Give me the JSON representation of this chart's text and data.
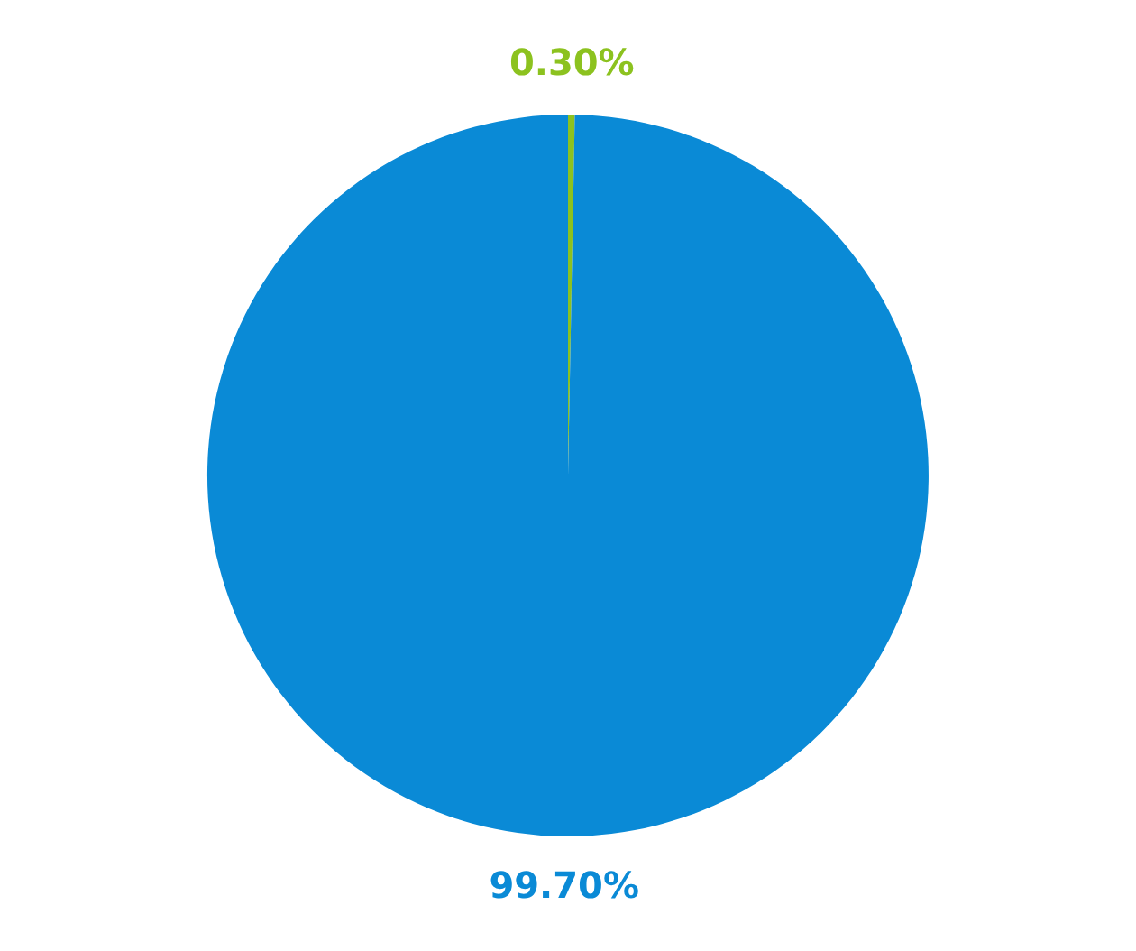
{
  "chart_data": {
    "type": "pie",
    "categories": [
      null,
      null
    ],
    "values": [
      0.3,
      99.7
    ],
    "colors": [
      "#8cc21f",
      "#0a8ad6"
    ],
    "value_labels": [
      "0.30%",
      "99.70%"
    ]
  }
}
